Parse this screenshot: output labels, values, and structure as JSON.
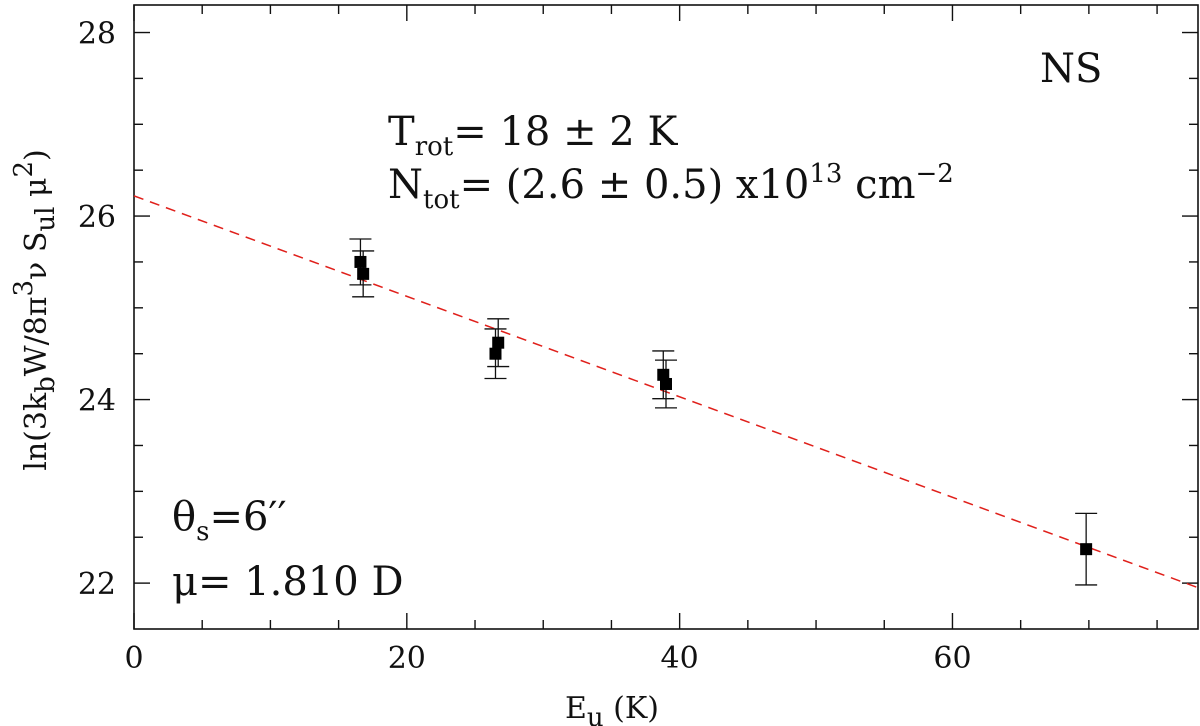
{
  "chart_data": {
    "type": "scatter",
    "xlabel": {
      "main": "E",
      "sub": "u",
      "tail": " (K)"
    },
    "ylabel": "ln(3k_b W/8π^3 ν S_ul μ^2)",
    "xlim": [
      0,
      78
    ],
    "ylim": [
      21.5,
      28.3
    ],
    "x_ticks": [
      0,
      20,
      40,
      60
    ],
    "y_ticks": [
      22,
      24,
      26,
      28
    ],
    "grid": false,
    "points": [
      {
        "x": 16.6,
        "y": 25.5,
        "err": 0.25
      },
      {
        "x": 16.8,
        "y": 25.37,
        "err": 0.25
      },
      {
        "x": 26.5,
        "y": 24.5,
        "err": 0.27
      },
      {
        "x": 26.7,
        "y": 24.62,
        "err": 0.26
      },
      {
        "x": 38.8,
        "y": 24.27,
        "err": 0.26
      },
      {
        "x": 39.0,
        "y": 24.17,
        "err": 0.26
      },
      {
        "x": 69.8,
        "y": 22.37,
        "err": 0.39
      }
    ],
    "fit": {
      "x": [
        0,
        78
      ],
      "y": [
        26.22,
        21.95
      ],
      "color": "#e0201b",
      "style": "dashed"
    },
    "annotations": {
      "label": "NS",
      "trot": {
        "sym": "T",
        "sub": "rot",
        "text": "= 18 ± 2 K"
      },
      "ntot": {
        "sym": "N",
        "sub": "tot",
        "text": "= (2.6 ± 0.5) x10",
        "exp": "13",
        "unit": " cm",
        "unit_exp": "−2"
      },
      "theta": {
        "sym": "θ",
        "sub": "s",
        "text": "=6′′"
      },
      "mu": {
        "text": "μ= 1.810 D"
      }
    }
  }
}
